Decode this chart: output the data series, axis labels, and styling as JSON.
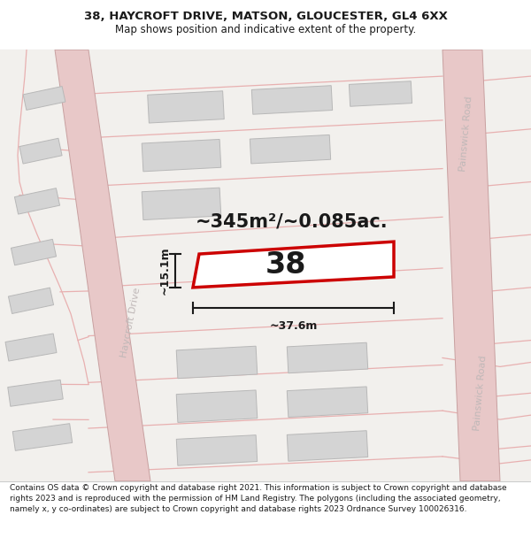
{
  "title_line1": "38, HAYCROFT DRIVE, MATSON, GLOUCESTER, GL4 6XX",
  "title_line2": "Map shows position and indicative extent of the property.",
  "footer_text": "Contains OS data © Crown copyright and database right 2021. This information is subject to Crown copyright and database rights 2023 and is reproduced with the permission of HM Land Registry. The polygons (including the associated geometry, namely x, y co-ordinates) are subject to Crown copyright and database rights 2023 Ordnance Survey 100026316.",
  "area_label": "~345m²/~0.085ac.",
  "number_label": "38",
  "dim_width": "~37.6m",
  "dim_height": "~15.1m",
  "road_label_left": "Haycroft Drive",
  "road_label_right1": "Painswick Road",
  "road_label_right2": "Painswick Road",
  "bg_color": "#ffffff",
  "map_bg": "#f2f0ed",
  "road_fill": "#e8c8c8",
  "road_edge": "#c8a0a0",
  "building_fill": "#d4d4d4",
  "building_edge": "#b8b8b8",
  "plot_fill": "#ffffff",
  "plot_edge": "#cc0000",
  "dim_line_color": "#1a1a1a",
  "text_color": "#1a1a1a",
  "road_text_color": "#c0b8b8",
  "parcel_line_color": "#e8b0b0",
  "title_fontsize": 9.5,
  "subtitle_fontsize": 8.5,
  "footer_fontsize": 6.5,
  "area_fontsize": 15,
  "number_fontsize": 24,
  "dim_fontsize": 9
}
